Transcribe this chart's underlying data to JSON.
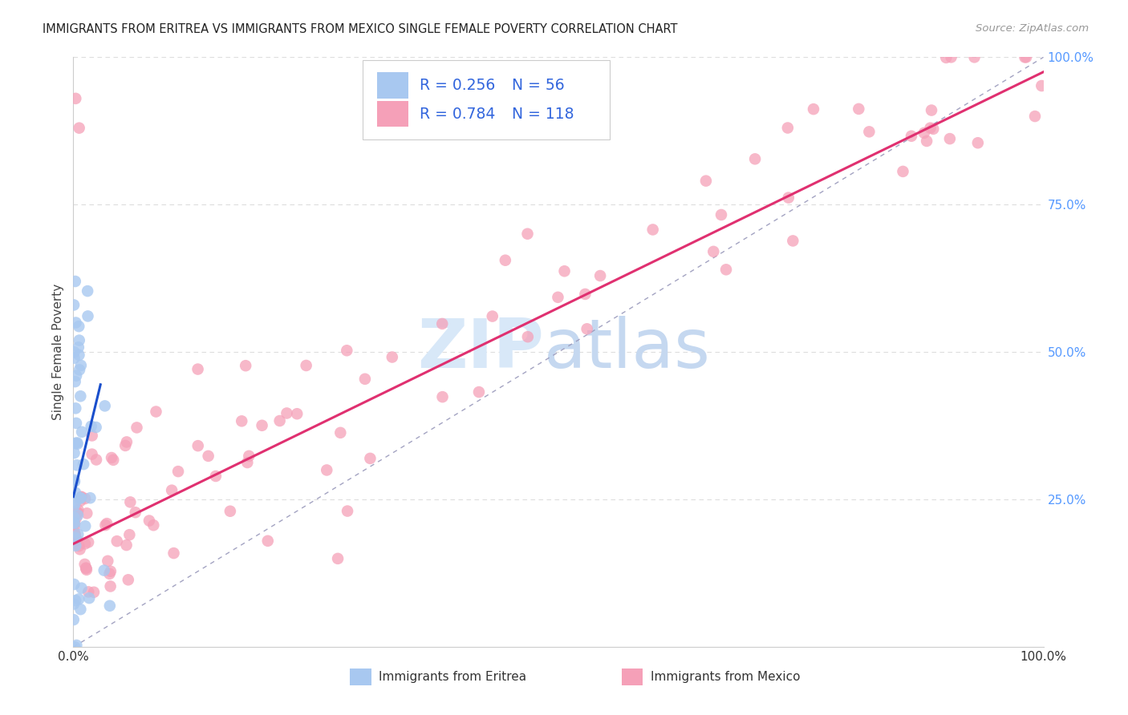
{
  "title": "IMMIGRANTS FROM ERITREA VS IMMIGRANTS FROM MEXICO SINGLE FEMALE POVERTY CORRELATION CHART",
  "source": "Source: ZipAtlas.com",
  "ylabel": "Single Female Poverty",
  "eritrea_R": 0.256,
  "eritrea_N": 56,
  "mexico_R": 0.784,
  "mexico_N": 118,
  "eritrea_color": "#a8c8f0",
  "eritrea_line_color": "#1a4fcc",
  "mexico_color": "#f5a0b8",
  "mexico_line_color": "#e03070",
  "diagonal_color": "#9999bb",
  "legend_text_color": "#3366dd",
  "watermark_zip_color": "#d8e8f8",
  "watermark_atlas_color": "#c5d8f0",
  "background_color": "#ffffff",
  "grid_color": "#dddddd",
  "right_tick_color": "#5599ff",
  "bottom_tick_color": "#333333"
}
